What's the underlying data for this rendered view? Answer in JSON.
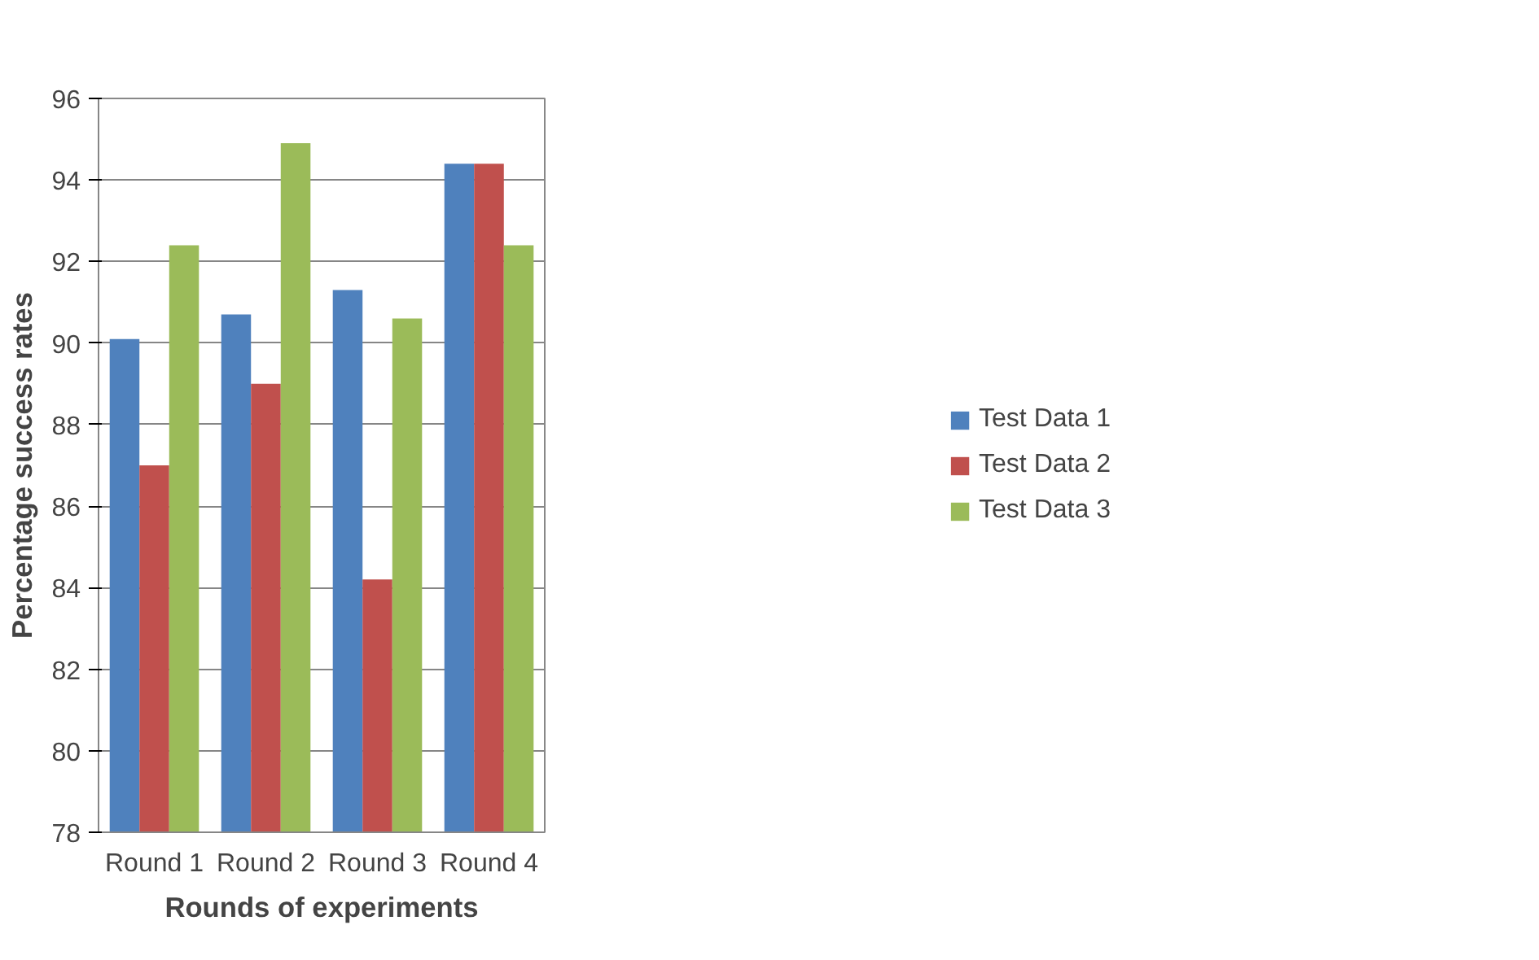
{
  "chart_data": {
    "type": "bar",
    "xlabel": "Rounds of experiments",
    "ylabel": "Percentage success rates",
    "categories": [
      "Round 1",
      "Round 2",
      "Round 3",
      "Round 4"
    ],
    "series": [
      {
        "name": "Test Data 1",
        "color": "#4f81bd",
        "values": [
          90.1,
          90.7,
          91.3,
          94.4
        ]
      },
      {
        "name": "Test Data 2",
        "color": "#c0504d",
        "values": [
          87.0,
          89.0,
          84.2,
          94.4
        ]
      },
      {
        "name": "Test Data 3",
        "color": "#9bbb59",
        "values": [
          92.4,
          94.9,
          90.6,
          92.4
        ]
      }
    ],
    "ylim": [
      78,
      96
    ],
    "yticks": [
      78,
      80,
      82,
      84,
      86,
      88,
      90,
      92,
      94,
      96
    ],
    "grid": "y",
    "legend": "right"
  }
}
